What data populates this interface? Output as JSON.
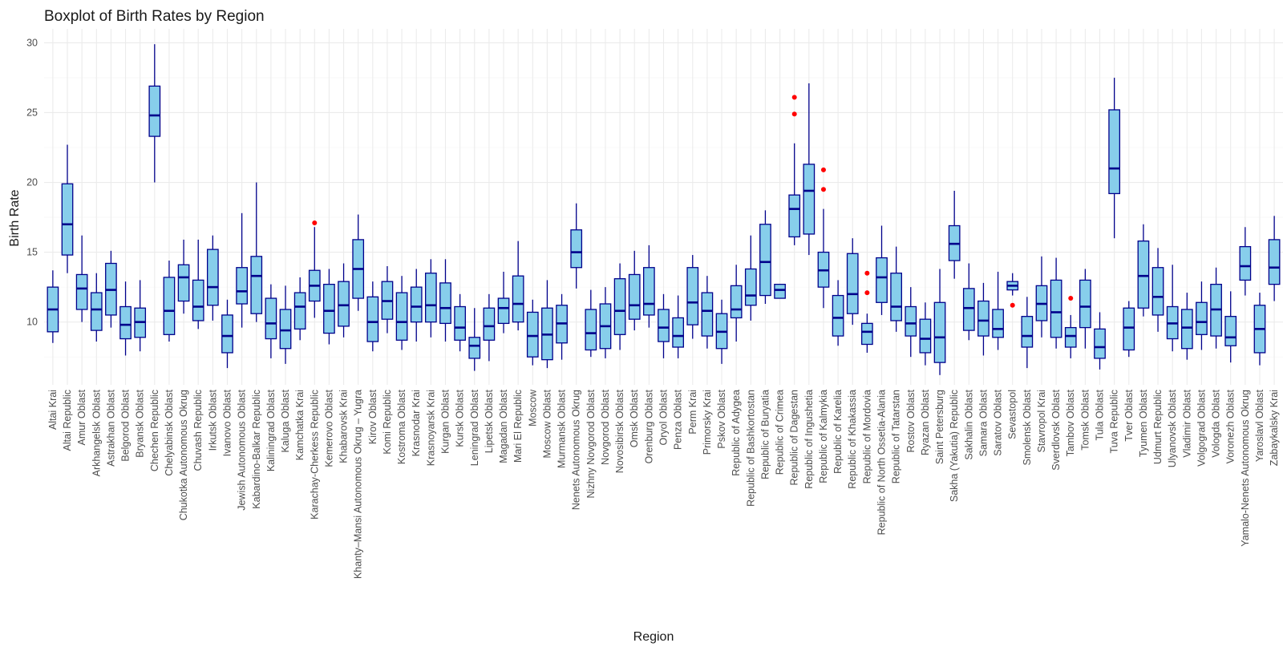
{
  "chart_data": {
    "type": "boxplot",
    "title": "Boxplot of Birth Rates by Region",
    "xlabel": "Region",
    "ylabel": "Birth Rate",
    "ylim": [
      5.5,
      31
    ],
    "yticks": [
      10,
      15,
      20,
      25,
      30
    ],
    "grid": true,
    "legend": "none",
    "colors": {
      "box_fill": "#87CEEB",
      "box_stroke": "#00008B",
      "outlier": "#FF0000"
    },
    "boxes": [
      {
        "region": "Altai Krai",
        "min": 8.5,
        "q1": 9.3,
        "median": 10.9,
        "q3": 12.5,
        "max": 13.7,
        "outliers": []
      },
      {
        "region": "Altai Republic",
        "min": 13.5,
        "q1": 14.8,
        "median": 17.0,
        "q3": 19.9,
        "max": 22.7,
        "outliers": []
      },
      {
        "region": "Amur Oblast",
        "min": 10.0,
        "q1": 10.9,
        "median": 12.4,
        "q3": 13.4,
        "max": 16.2,
        "outliers": []
      },
      {
        "region": "Arkhangelsk Oblast",
        "min": 8.6,
        "q1": 9.4,
        "median": 10.9,
        "q3": 12.1,
        "max": 13.5,
        "outliers": []
      },
      {
        "region": "Astrakhan Oblast",
        "min": 9.6,
        "q1": 10.5,
        "median": 12.3,
        "q3": 14.2,
        "max": 15.1,
        "outliers": []
      },
      {
        "region": "Belgorod Oblast",
        "min": 7.6,
        "q1": 8.8,
        "median": 9.8,
        "q3": 11.1,
        "max": 12.9,
        "outliers": []
      },
      {
        "region": "Bryansk Oblast",
        "min": 7.9,
        "q1": 8.9,
        "median": 10.0,
        "q3": 11.0,
        "max": 13.0,
        "outliers": []
      },
      {
        "region": "Chechen Republic",
        "min": 20.0,
        "q1": 23.3,
        "median": 24.8,
        "q3": 26.9,
        "max": 29.9,
        "outliers": []
      },
      {
        "region": "Chelyabinsk Oblast",
        "min": 8.6,
        "q1": 9.1,
        "median": 10.8,
        "q3": 13.2,
        "max": 14.4,
        "outliers": []
      },
      {
        "region": "Chukotka Autonomous Okrug",
        "min": 10.6,
        "q1": 11.5,
        "median": 13.2,
        "q3": 14.1,
        "max": 15.9,
        "outliers": []
      },
      {
        "region": "Chuvash Republic",
        "min": 9.5,
        "q1": 10.1,
        "median": 11.1,
        "q3": 13.0,
        "max": 15.9,
        "outliers": []
      },
      {
        "region": "Irkutsk Oblast",
        "min": 10.1,
        "q1": 11.2,
        "median": 12.5,
        "q3": 15.2,
        "max": 16.2,
        "outliers": []
      },
      {
        "region": "Ivanovo Oblast",
        "min": 6.7,
        "q1": 7.8,
        "median": 9.0,
        "q3": 10.5,
        "max": 11.6,
        "outliers": []
      },
      {
        "region": "Jewish Autonomous Oblast",
        "min": 9.6,
        "q1": 11.3,
        "median": 12.2,
        "q3": 13.9,
        "max": 17.8,
        "outliers": []
      },
      {
        "region": "Kabardino-Balkar Republic",
        "min": 10.0,
        "q1": 10.6,
        "median": 13.3,
        "q3": 14.7,
        "max": 20.0,
        "outliers": []
      },
      {
        "region": "Kaliningrad Oblast",
        "min": 7.4,
        "q1": 8.8,
        "median": 9.9,
        "q3": 11.7,
        "max": 12.7,
        "outliers": []
      },
      {
        "region": "Kaluga Oblast",
        "min": 7.0,
        "q1": 8.1,
        "median": 9.4,
        "q3": 10.9,
        "max": 12.6,
        "outliers": []
      },
      {
        "region": "Kamchatka Krai",
        "min": 8.7,
        "q1": 9.5,
        "median": 11.1,
        "q3": 12.1,
        "max": 13.2,
        "outliers": []
      },
      {
        "region": "Karachay-Cherkess Republic",
        "min": 10.3,
        "q1": 11.5,
        "median": 12.6,
        "q3": 13.7,
        "max": 16.8,
        "outliers": [
          17.1
        ]
      },
      {
        "region": "Kemerovo Oblast",
        "min": 8.4,
        "q1": 9.2,
        "median": 10.8,
        "q3": 12.7,
        "max": 13.8,
        "outliers": []
      },
      {
        "region": "Khabarovsk Krai",
        "min": 8.9,
        "q1": 9.7,
        "median": 11.2,
        "q3": 12.9,
        "max": 14.2,
        "outliers": []
      },
      {
        "region": "Khanty–Mansi Autonomous Okrug – Yugra",
        "min": 10.8,
        "q1": 11.7,
        "median": 13.8,
        "q3": 15.9,
        "max": 17.7,
        "outliers": []
      },
      {
        "region": "Kirov Oblast",
        "min": 7.9,
        "q1": 8.6,
        "median": 10.0,
        "q3": 11.8,
        "max": 12.9,
        "outliers": []
      },
      {
        "region": "Komi Republic",
        "min": 9.2,
        "q1": 10.2,
        "median": 11.5,
        "q3": 12.9,
        "max": 14.0,
        "outliers": []
      },
      {
        "region": "Kostroma Oblast",
        "min": 8.0,
        "q1": 8.7,
        "median": 10.0,
        "q3": 12.1,
        "max": 13.3,
        "outliers": []
      },
      {
        "region": "Krasnodar Krai",
        "min": 8.6,
        "q1": 10.0,
        "median": 11.1,
        "q3": 12.5,
        "max": 13.8,
        "outliers": []
      },
      {
        "region": "Krasnoyarsk Krai",
        "min": 8.9,
        "q1": 10.0,
        "median": 11.2,
        "q3": 13.5,
        "max": 14.5,
        "outliers": []
      },
      {
        "region": "Kurgan Oblast",
        "min": 8.6,
        "q1": 9.9,
        "median": 11.0,
        "q3": 12.8,
        "max": 14.5,
        "outliers": []
      },
      {
        "region": "Kursk Oblast",
        "min": 7.9,
        "q1": 8.7,
        "median": 9.6,
        "q3": 11.1,
        "max": 12.0,
        "outliers": []
      },
      {
        "region": "Leningrad Oblast",
        "min": 6.5,
        "q1": 7.4,
        "median": 8.3,
        "q3": 8.9,
        "max": 11.0,
        "outliers": []
      },
      {
        "region": "Lipetsk Oblast",
        "min": 7.2,
        "q1": 8.7,
        "median": 9.7,
        "q3": 11.0,
        "max": 12.0,
        "outliers": []
      },
      {
        "region": "Magadan Oblast",
        "min": 9.2,
        "q1": 9.9,
        "median": 11.0,
        "q3": 11.7,
        "max": 13.6,
        "outliers": []
      },
      {
        "region": "Mari El Republic",
        "min": 9.4,
        "q1": 10.0,
        "median": 11.3,
        "q3": 13.3,
        "max": 15.8,
        "outliers": []
      },
      {
        "region": "Moscow",
        "min": 6.9,
        "q1": 7.5,
        "median": 9.0,
        "q3": 10.7,
        "max": 11.6,
        "outliers": []
      },
      {
        "region": "Moscow Oblast",
        "min": 6.7,
        "q1": 7.3,
        "median": 9.1,
        "q3": 11.0,
        "max": 13.0,
        "outliers": []
      },
      {
        "region": "Murmansk Oblast",
        "min": 7.3,
        "q1": 8.5,
        "median": 9.9,
        "q3": 11.2,
        "max": 12.0,
        "outliers": []
      },
      {
        "region": "Nenets Autonomous Okrug",
        "min": 12.4,
        "q1": 13.9,
        "median": 15.0,
        "q3": 16.6,
        "max": 18.5,
        "outliers": []
      },
      {
        "region": "Nizhny Novgorod Oblast",
        "min": 7.5,
        "q1": 8.0,
        "median": 9.2,
        "q3": 10.9,
        "max": 12.3,
        "outliers": []
      },
      {
        "region": "Novgorod Oblast",
        "min": 7.4,
        "q1": 8.1,
        "median": 9.7,
        "q3": 11.3,
        "max": 12.5,
        "outliers": []
      },
      {
        "region": "Novosibirsk Oblast",
        "min": 8.0,
        "q1": 9.1,
        "median": 10.8,
        "q3": 13.1,
        "max": 14.2,
        "outliers": []
      },
      {
        "region": "Omsk Oblast",
        "min": 9.4,
        "q1": 10.2,
        "median": 11.2,
        "q3": 13.4,
        "max": 15.1,
        "outliers": []
      },
      {
        "region": "Orenburg Oblast",
        "min": 9.6,
        "q1": 10.5,
        "median": 11.3,
        "q3": 13.9,
        "max": 15.5,
        "outliers": []
      },
      {
        "region": "Oryol Oblast",
        "min": 7.4,
        "q1": 8.6,
        "median": 9.6,
        "q3": 10.9,
        "max": 12.0,
        "outliers": []
      },
      {
        "region": "Penza Oblast",
        "min": 7.4,
        "q1": 8.2,
        "median": 9.0,
        "q3": 10.3,
        "max": 11.9,
        "outliers": []
      },
      {
        "region": "Perm Krai",
        "min": 8.8,
        "q1": 9.8,
        "median": 11.4,
        "q3": 13.9,
        "max": 14.8,
        "outliers": []
      },
      {
        "region": "Primorsky Krai",
        "min": 8.1,
        "q1": 9.0,
        "median": 10.8,
        "q3": 12.1,
        "max": 13.3,
        "outliers": []
      },
      {
        "region": "Pskov Oblast",
        "min": 7.0,
        "q1": 8.1,
        "median": 9.3,
        "q3": 10.6,
        "max": 11.6,
        "outliers": []
      },
      {
        "region": "Republic of Adygea",
        "min": 8.6,
        "q1": 10.3,
        "median": 10.9,
        "q3": 12.6,
        "max": 14.1,
        "outliers": []
      },
      {
        "region": "Republic of Bashkortostan",
        "min": 10.1,
        "q1": 11.2,
        "median": 11.9,
        "q3": 13.8,
        "max": 16.2,
        "outliers": []
      },
      {
        "region": "Republic of Buryatia",
        "min": 11.3,
        "q1": 11.9,
        "median": 14.3,
        "q3": 17.0,
        "max": 18.0,
        "outliers": []
      },
      {
        "region": "Republic of Crimea",
        "min": 11.7,
        "q1": 11.7,
        "median": 12.3,
        "q3": 12.7,
        "max": 12.7,
        "outliers": []
      },
      {
        "region": "Republic of Dagestan",
        "min": 15.5,
        "q1": 16.1,
        "median": 18.1,
        "q3": 19.1,
        "max": 22.8,
        "outliers": [
          24.9,
          26.1
        ]
      },
      {
        "region": "Republic of Ingushetia",
        "min": 14.8,
        "q1": 16.3,
        "median": 19.4,
        "q3": 21.3,
        "max": 27.1,
        "outliers": []
      },
      {
        "region": "Republic of Kalmykia",
        "min": 11.0,
        "q1": 12.5,
        "median": 13.7,
        "q3": 15.0,
        "max": 18.1,
        "outliers": [
          19.5,
          20.9
        ]
      },
      {
        "region": "Republic of Karelia",
        "min": 8.3,
        "q1": 9.0,
        "median": 10.3,
        "q3": 11.9,
        "max": 13.0,
        "outliers": []
      },
      {
        "region": "Republic of Khakassia",
        "min": 9.8,
        "q1": 10.6,
        "median": 12.0,
        "q3": 14.9,
        "max": 16.0,
        "outliers": []
      },
      {
        "region": "Republic of Mordovia",
        "min": 7.8,
        "q1": 8.4,
        "median": 9.3,
        "q3": 9.9,
        "max": 10.6,
        "outliers": [
          12.1,
          13.5
        ]
      },
      {
        "region": "Republic of North Ossetia-Alania",
        "min": 10.5,
        "q1": 11.4,
        "median": 13.2,
        "q3": 14.6,
        "max": 16.9,
        "outliers": []
      },
      {
        "region": "Republic of Tatarstan",
        "min": 9.3,
        "q1": 10.1,
        "median": 11.1,
        "q3": 13.5,
        "max": 15.4,
        "outliers": []
      },
      {
        "region": "Rostov Oblast",
        "min": 7.5,
        "q1": 9.0,
        "median": 9.9,
        "q3": 11.1,
        "max": 12.5,
        "outliers": []
      },
      {
        "region": "Ryazan Oblast",
        "min": 6.9,
        "q1": 7.8,
        "median": 8.8,
        "q3": 10.2,
        "max": 11.4,
        "outliers": []
      },
      {
        "region": "Saint Petersburg",
        "min": 6.2,
        "q1": 7.1,
        "median": 8.9,
        "q3": 11.4,
        "max": 13.8,
        "outliers": []
      },
      {
        "region": "Sakha (Yakutia) Republic",
        "min": 13.1,
        "q1": 14.4,
        "median": 15.6,
        "q3": 16.9,
        "max": 19.4,
        "outliers": []
      },
      {
        "region": "Sakhalin Oblast",
        "min": 8.7,
        "q1": 9.4,
        "median": 11.0,
        "q3": 12.4,
        "max": 14.2,
        "outliers": []
      },
      {
        "region": "Samara Oblast",
        "min": 7.6,
        "q1": 9.0,
        "median": 10.1,
        "q3": 11.5,
        "max": 12.8,
        "outliers": []
      },
      {
        "region": "Saratov Oblast",
        "min": 8.0,
        "q1": 8.9,
        "median": 9.5,
        "q3": 10.9,
        "max": 13.6,
        "outliers": []
      },
      {
        "region": "Sevastopol",
        "min": 11.9,
        "q1": 12.3,
        "median": 12.6,
        "q3": 12.9,
        "max": 13.5,
        "outliers": [
          11.2
        ]
      },
      {
        "region": "Smolensk Oblast",
        "min": 6.7,
        "q1": 8.2,
        "median": 9.0,
        "q3": 10.4,
        "max": 11.8,
        "outliers": []
      },
      {
        "region": "Stavropol Krai",
        "min": 8.9,
        "q1": 10.1,
        "median": 11.3,
        "q3": 12.6,
        "max": 14.7,
        "outliers": []
      },
      {
        "region": "Sverdlovsk Oblast",
        "min": 8.1,
        "q1": 8.9,
        "median": 10.7,
        "q3": 13.0,
        "max": 14.6,
        "outliers": []
      },
      {
        "region": "Tambov Oblast",
        "min": 7.4,
        "q1": 8.2,
        "median": 9.0,
        "q3": 9.6,
        "max": 10.5,
        "outliers": [
          11.7
        ]
      },
      {
        "region": "Tomsk Oblast",
        "min": 8.1,
        "q1": 9.6,
        "median": 11.1,
        "q3": 13.0,
        "max": 13.8,
        "outliers": []
      },
      {
        "region": "Tula Oblast",
        "min": 6.6,
        "q1": 7.4,
        "median": 8.2,
        "q3": 9.5,
        "max": 10.7,
        "outliers": []
      },
      {
        "region": "Tuva Republic",
        "min": 16.0,
        "q1": 19.2,
        "median": 21.0,
        "q3": 25.2,
        "max": 27.5,
        "outliers": []
      },
      {
        "region": "Tver Oblast",
        "min": 7.5,
        "q1": 8.0,
        "median": 9.6,
        "q3": 11.0,
        "max": 11.5,
        "outliers": []
      },
      {
        "region": "Tyumen Oblast",
        "min": 10.4,
        "q1": 11.0,
        "median": 13.3,
        "q3": 15.8,
        "max": 17.0,
        "outliers": []
      },
      {
        "region": "Udmurt Republic",
        "min": 9.3,
        "q1": 10.5,
        "median": 11.8,
        "q3": 13.9,
        "max": 15.3,
        "outliers": []
      },
      {
        "region": "Ulyanovsk Oblast",
        "min": 7.9,
        "q1": 8.8,
        "median": 9.9,
        "q3": 11.1,
        "max": 14.1,
        "outliers": []
      },
      {
        "region": "Vladimir Oblast",
        "min": 7.3,
        "q1": 8.1,
        "median": 9.6,
        "q3": 10.9,
        "max": 12.1,
        "outliers": []
      },
      {
        "region": "Volgograd Oblast",
        "min": 8.0,
        "q1": 9.1,
        "median": 10.0,
        "q3": 11.4,
        "max": 12.9,
        "outliers": []
      },
      {
        "region": "Vologda Oblast",
        "min": 8.1,
        "q1": 9.0,
        "median": 10.9,
        "q3": 12.7,
        "max": 13.9,
        "outliers": []
      },
      {
        "region": "Voronezh Oblast",
        "min": 7.1,
        "q1": 8.3,
        "median": 8.9,
        "q3": 10.4,
        "max": 12.2,
        "outliers": []
      },
      {
        "region": "Yamalo-Nenets Autonomous Okrug",
        "min": 11.9,
        "q1": 13.0,
        "median": 14.0,
        "q3": 15.4,
        "max": 16.8,
        "outliers": []
      },
      {
        "region": "Yaroslavl Oblast",
        "min": 6.9,
        "q1": 7.8,
        "median": 9.5,
        "q3": 11.2,
        "max": 12.1,
        "outliers": []
      },
      {
        "region": "Zabaykalsky Krai",
        "min": 11.5,
        "q1": 12.7,
        "median": 13.9,
        "q3": 15.9,
        "max": 17.6,
        "outliers": []
      }
    ]
  }
}
